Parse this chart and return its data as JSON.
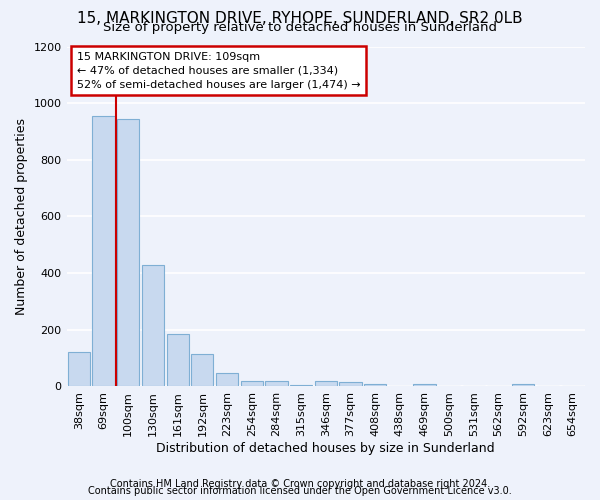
{
  "title1": "15, MARKINGTON DRIVE, RYHOPE, SUNDERLAND, SR2 0LB",
  "title2": "Size of property relative to detached houses in Sunderland",
  "xlabel": "Distribution of detached houses by size in Sunderland",
  "ylabel": "Number of detached properties",
  "categories": [
    "38sqm",
    "69sqm",
    "100sqm",
    "130sqm",
    "161sqm",
    "192sqm",
    "223sqm",
    "254sqm",
    "284sqm",
    "315sqm",
    "346sqm",
    "377sqm",
    "408sqm",
    "438sqm",
    "469sqm",
    "500sqm",
    "531sqm",
    "562sqm",
    "592sqm",
    "623sqm",
    "654sqm"
  ],
  "values": [
    120,
    955,
    945,
    430,
    185,
    115,
    48,
    20,
    18,
    5,
    18,
    16,
    8,
    0,
    8,
    0,
    0,
    0,
    8,
    0,
    0
  ],
  "bar_color": "#c8d9ef",
  "bar_edge_color": "#7fafd4",
  "vline_x_index": 2,
  "annotation_line1": "15 MARKINGTON DRIVE: 109sqm",
  "annotation_line2": "← 47% of detached houses are smaller (1,334)",
  "annotation_line3": "52% of semi-detached houses are larger (1,474) →",
  "annotation_box_color": "#ffffff",
  "annotation_box_edge": "#cc0000",
  "vline_color": "#cc0000",
  "ylim": [
    0,
    1200
  ],
  "yticks": [
    0,
    200,
    400,
    600,
    800,
    1000,
    1200
  ],
  "footer1": "Contains HM Land Registry data © Crown copyright and database right 2024.",
  "footer2": "Contains public sector information licensed under the Open Government Licence v3.0.",
  "background_color": "#eef2fb",
  "grid_color": "#ffffff",
  "title1_fontsize": 11,
  "title2_fontsize": 9.5,
  "axis_label_fontsize": 9,
  "tick_fontsize": 8,
  "annotation_fontsize": 8,
  "footer_fontsize": 7
}
